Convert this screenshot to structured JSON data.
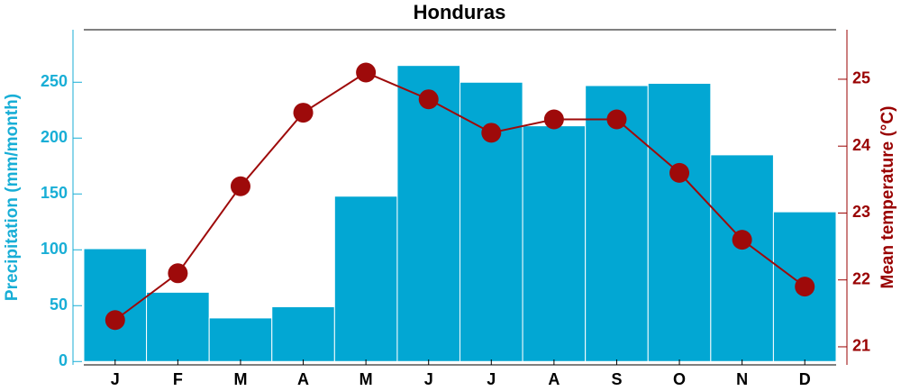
{
  "chart_data": {
    "type": "bar_line",
    "title": "Honduras",
    "categories": [
      "J",
      "F",
      "M",
      "A",
      "M",
      "J",
      "J",
      "A",
      "S",
      "O",
      "N",
      "D"
    ],
    "y_label": "Precipitation (mm/month)",
    "y2_label": "Mean temperature (°C)",
    "series": [
      {
        "name": "Precipitation",
        "type": "bar",
        "color": "#02a7d3",
        "values": [
          101,
          62,
          39,
          49,
          148,
          265,
          250,
          211,
          247,
          249,
          185,
          134
        ]
      },
      {
        "name": "Mean temperature",
        "type": "line",
        "axis": "y2",
        "color": "#9e0a0a",
        "values": [
          21.4,
          22.1,
          23.4,
          24.5,
          25.1,
          24.7,
          24.2,
          24.4,
          24.4,
          23.6,
          22.6,
          21.9
        ]
      }
    ],
    "ylim": [
      -3,
      297
    ],
    "yticks": [
      0,
      50,
      100,
      150,
      200,
      250
    ],
    "y2lim": [
      20.73,
      25.74
    ],
    "y2ticks": [
      21,
      22,
      23,
      24,
      25
    ],
    "y_color": "#18aed6",
    "y2_color": "#990000"
  }
}
